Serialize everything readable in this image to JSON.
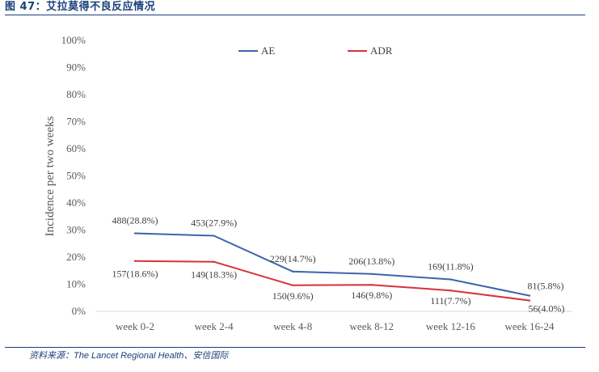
{
  "header": {
    "figure_label": "图 47：",
    "figure_title": "艾拉莫得不良反应情况"
  },
  "source": {
    "prefix": "资料来源：",
    "journal": "The Lancet Regional Health",
    "suffix": "、安信国际"
  },
  "chart_data": {
    "type": "line",
    "title": "",
    "xlabel": "",
    "ylabel": "Incidence per two weeks",
    "ylim": [
      0,
      100
    ],
    "yticks": [
      "0%",
      "10%",
      "20%",
      "30%",
      "40%",
      "50%",
      "60%",
      "70%",
      "80%",
      "90%",
      "100%"
    ],
    "categories": [
      "week 0-2",
      "week 2-4",
      "week 4-8",
      "week 8-12",
      "week 12-16",
      "week 16-24"
    ],
    "legend_position": "top",
    "series": [
      {
        "name": "AE",
        "color": "#3d64ab",
        "values": [
          28.8,
          27.9,
          14.7,
          13.8,
          11.8,
          5.8
        ],
        "labels": [
          "488(28.8%)",
          "453(27.9%)",
          "229(14.7%)",
          "206(13.8%)",
          "169(11.8%)",
          "81(5.8%)"
        ]
      },
      {
        "name": "ADR",
        "color": "#d6323e",
        "values": [
          18.6,
          18.3,
          9.6,
          9.8,
          7.7,
          4.0
        ],
        "labels": [
          "157(18.6%)",
          "149(18.3%)",
          "150(9.6%)",
          "146(9.8%)",
          "111(7.7%)",
          "56(4.0%)"
        ]
      }
    ]
  }
}
